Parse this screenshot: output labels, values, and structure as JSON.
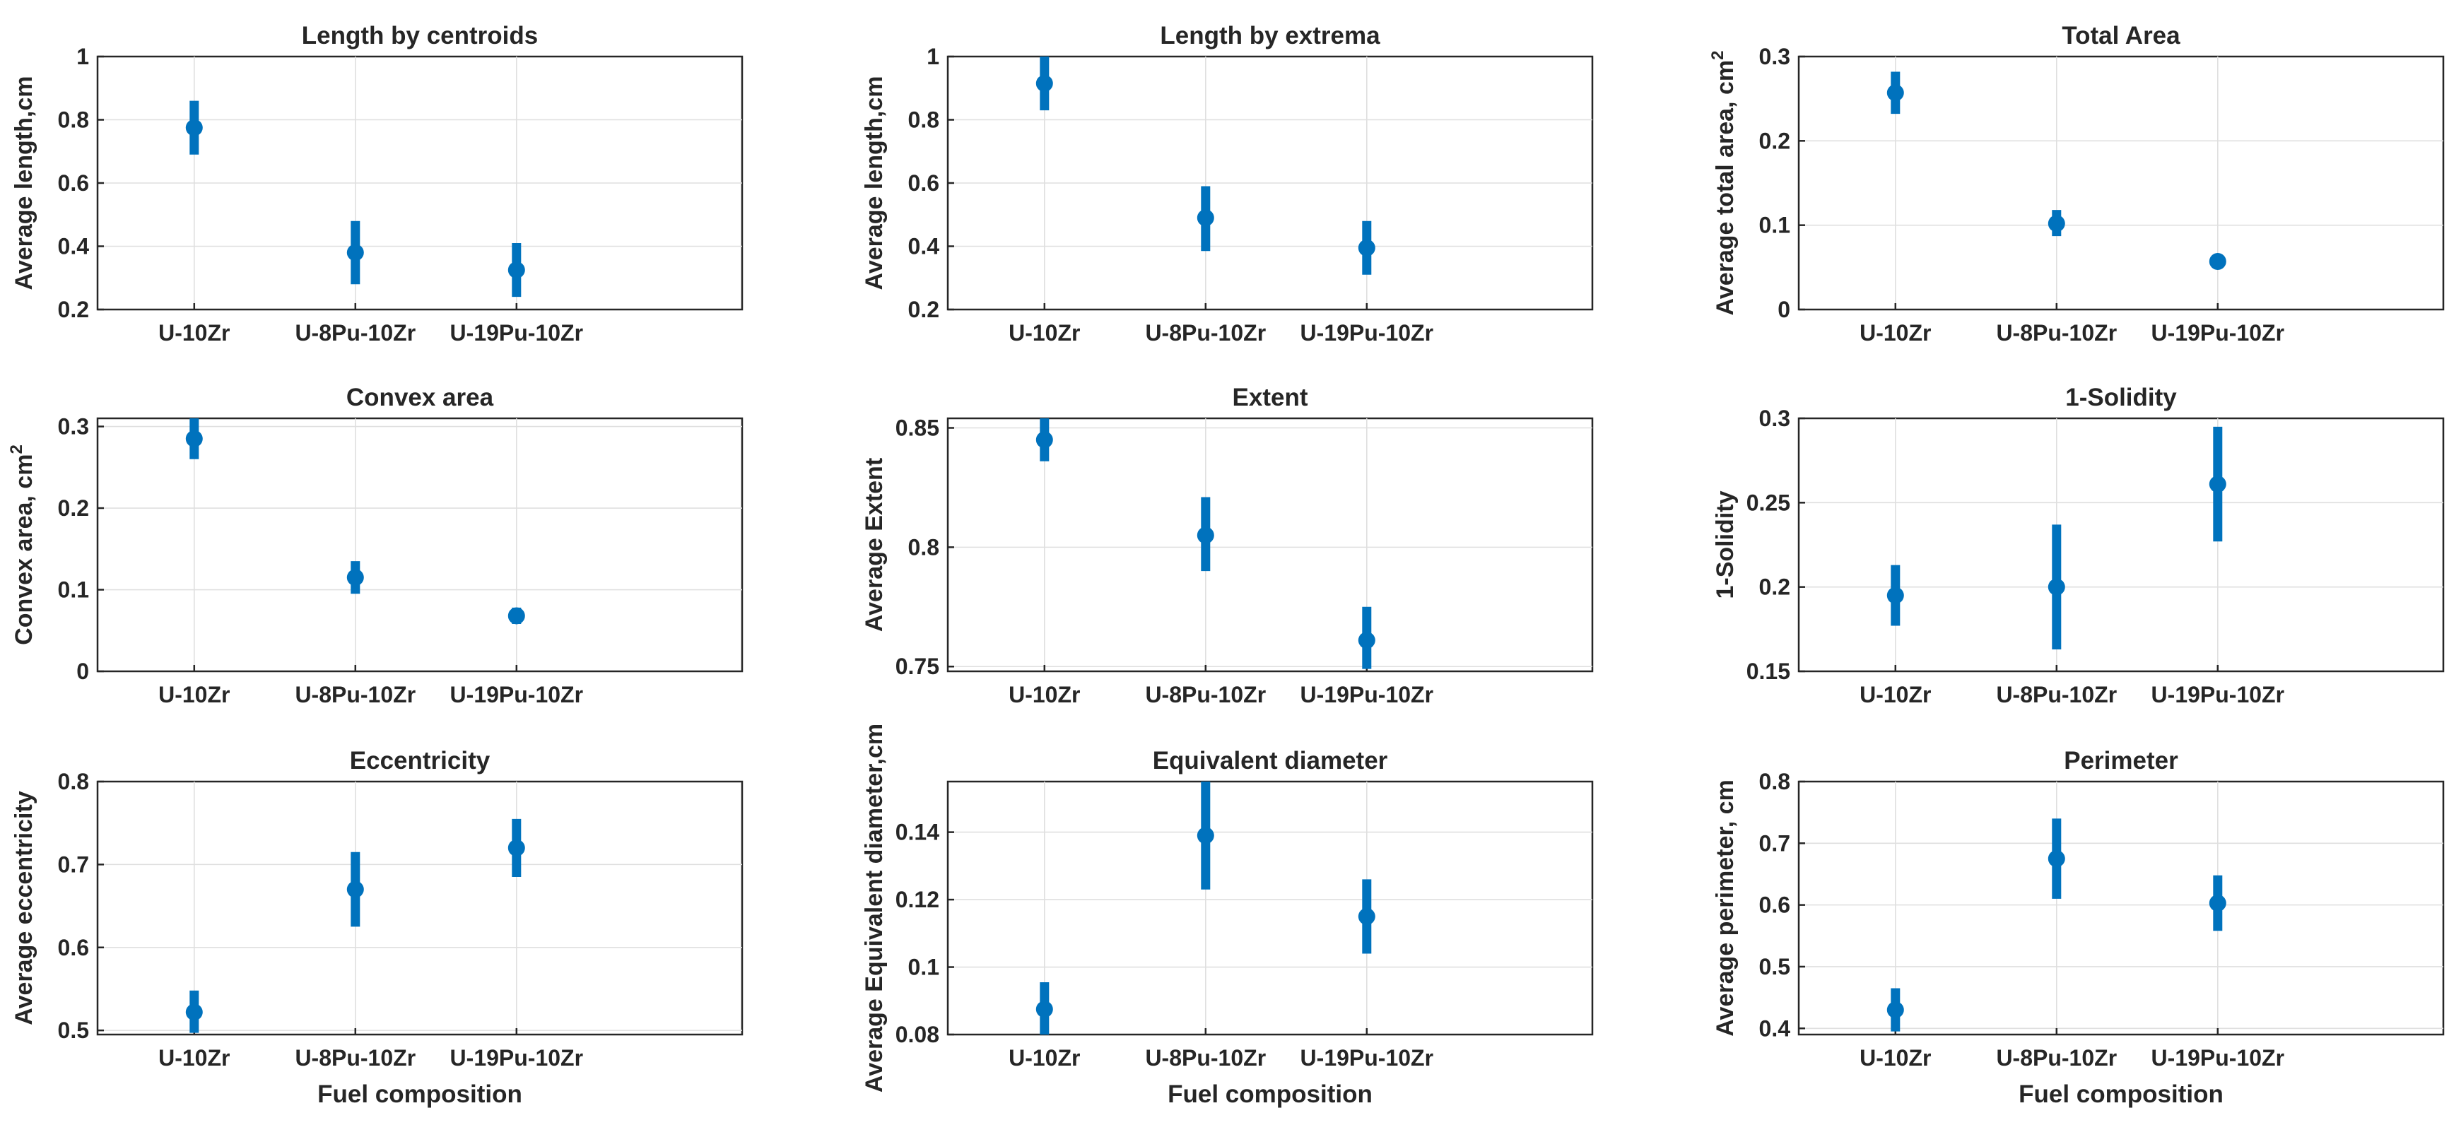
{
  "figure": {
    "marker_color": "#0072BD",
    "grid": true
  },
  "chart_data": [
    {
      "type": "scatter",
      "title": "Length by centroids",
      "ylabel": "Average length,cm",
      "xlabel": "",
      "ylabel_sup": "",
      "categories": [
        "U-10Zr",
        "U-8Pu-10Zr",
        "U-19Pu-10Zr"
      ],
      "y": [
        0.775,
        0.38,
        0.325
      ],
      "y_low": [
        0.69,
        0.28,
        0.24
      ],
      "y_high": [
        0.86,
        0.48,
        0.41
      ],
      "ylim": [
        0.2,
        1
      ],
      "yticks": [
        0.2,
        0.4,
        0.6,
        0.8,
        1
      ],
      "ytick_labels": [
        "0.2",
        "0.4",
        "0.6",
        "0.8",
        "1"
      ]
    },
    {
      "type": "scatter",
      "title": "Length by extrema",
      "ylabel": "Average length,cm",
      "xlabel": "",
      "ylabel_sup": "",
      "categories": [
        "U-10Zr",
        "U-8Pu-10Zr",
        "U-19Pu-10Zr"
      ],
      "y": [
        0.915,
        0.49,
        0.395
      ],
      "y_low": [
        0.83,
        0.385,
        0.31
      ],
      "y_high": [
        1.0,
        0.59,
        0.48
      ],
      "ylim": [
        0.2,
        1
      ],
      "yticks": [
        0.2,
        0.4,
        0.6,
        0.8,
        1
      ],
      "ytick_labels": [
        "0.2",
        "0.4",
        "0.6",
        "0.8",
        "1"
      ]
    },
    {
      "type": "scatter",
      "title": "Total Area",
      "ylabel": "Average total area, cm",
      "xlabel": "",
      "ylabel_sup": "2",
      "categories": [
        "U-10Zr",
        "U-8Pu-10Zr",
        "U-19Pu-10Zr"
      ],
      "y": [
        0.257,
        0.102,
        0.057
      ],
      "y_low": [
        0.232,
        0.087,
        0.049
      ],
      "y_high": [
        0.282,
        0.118,
        0.065
      ],
      "ylim": [
        0,
        0.3
      ],
      "yticks": [
        0,
        0.1,
        0.2,
        0.3
      ],
      "ytick_labels": [
        "0",
        "0.1",
        "0.2",
        "0.3"
      ]
    },
    {
      "type": "scatter",
      "title": "Convex area",
      "ylabel": "Convex area, cm",
      "xlabel": "",
      "ylabel_sup": "2",
      "categories": [
        "U-10Zr",
        "U-8Pu-10Zr",
        "U-19Pu-10Zr"
      ],
      "y": [
        0.285,
        0.115,
        0.068
      ],
      "y_low": [
        0.26,
        0.095,
        0.058
      ],
      "y_high": [
        0.31,
        0.135,
        0.078
      ],
      "ylim": [
        0,
        0.31
      ],
      "yticks": [
        0,
        0.1,
        0.2,
        0.3
      ],
      "ytick_labels": [
        "0",
        "0.1",
        "0.2",
        "0.3"
      ]
    },
    {
      "type": "scatter",
      "title": "Extent",
      "ylabel": "Average Extent",
      "xlabel": "",
      "ylabel_sup": "",
      "categories": [
        "U-10Zr",
        "U-8Pu-10Zr",
        "U-19Pu-10Zr"
      ],
      "y": [
        0.845,
        0.805,
        0.761
      ],
      "y_low": [
        0.836,
        0.79,
        0.749
      ],
      "y_high": [
        0.854,
        0.821,
        0.775
      ],
      "ylim": [
        0.748,
        0.854
      ],
      "yticks": [
        0.75,
        0.8,
        0.85
      ],
      "ytick_labels": [
        "0.75",
        "0.8",
        "0.85"
      ]
    },
    {
      "type": "scatter",
      "title": "1-Solidity",
      "ylabel": "1-Solidity",
      "xlabel": "",
      "ylabel_sup": "",
      "categories": [
        "U-10Zr",
        "U-8Pu-10Zr",
        "U-19Pu-10Zr"
      ],
      "y": [
        0.195,
        0.2,
        0.261
      ],
      "y_low": [
        0.177,
        0.163,
        0.227
      ],
      "y_high": [
        0.213,
        0.237,
        0.295
      ],
      "ylim": [
        0.15,
        0.3
      ],
      "yticks": [
        0.15,
        0.2,
        0.25,
        0.3
      ],
      "ytick_labels": [
        "0.15",
        "0.2",
        "0.25",
        "0.3"
      ]
    },
    {
      "type": "scatter",
      "title": "Eccentricity",
      "ylabel": "Average eccentricity",
      "xlabel": "Fuel composition",
      "ylabel_sup": "",
      "categories": [
        "U-10Zr",
        "U-8Pu-10Zr",
        "U-19Pu-10Zr"
      ],
      "y": [
        0.522,
        0.67,
        0.72
      ],
      "y_low": [
        0.497,
        0.625,
        0.685
      ],
      "y_high": [
        0.548,
        0.715,
        0.755
      ],
      "ylim": [
        0.495,
        0.8
      ],
      "yticks": [
        0.5,
        0.6,
        0.7,
        0.8
      ],
      "ytick_labels": [
        "0.5",
        "0.6",
        "0.7",
        "0.8"
      ]
    },
    {
      "type": "scatter",
      "title": "Equivalent diameter",
      "ylabel": "Average Equivalent diameter,cm",
      "xlabel": "Fuel composition",
      "ylabel_sup": "",
      "categories": [
        "U-10Zr",
        "U-8Pu-10Zr",
        "U-19Pu-10Zr"
      ],
      "y": [
        0.0875,
        0.139,
        0.115
      ],
      "y_low": [
        0.0795,
        0.123,
        0.104
      ],
      "y_high": [
        0.0955,
        0.155,
        0.126
      ],
      "ylim": [
        0.08,
        0.155
      ],
      "yticks": [
        0.08,
        0.1,
        0.12,
        0.14
      ],
      "ytick_labels": [
        "0.08",
        "0.1",
        "0.12",
        "0.14"
      ]
    },
    {
      "type": "scatter",
      "title": "Perimeter",
      "ylabel": "Average perimeter, cm",
      "xlabel": "Fuel composition",
      "ylabel_sup": "",
      "categories": [
        "U-10Zr",
        "U-8Pu-10Zr",
        "U-19Pu-10Zr"
      ],
      "y": [
        0.43,
        0.675,
        0.603
      ],
      "y_low": [
        0.395,
        0.61,
        0.558
      ],
      "y_high": [
        0.465,
        0.74,
        0.648
      ],
      "ylim": [
        0.39,
        0.8
      ],
      "yticks": [
        0.4,
        0.5,
        0.6,
        0.7,
        0.8
      ],
      "ytick_labels": [
        "0.4",
        "0.5",
        "0.6",
        "0.7",
        "0.8"
      ]
    }
  ]
}
